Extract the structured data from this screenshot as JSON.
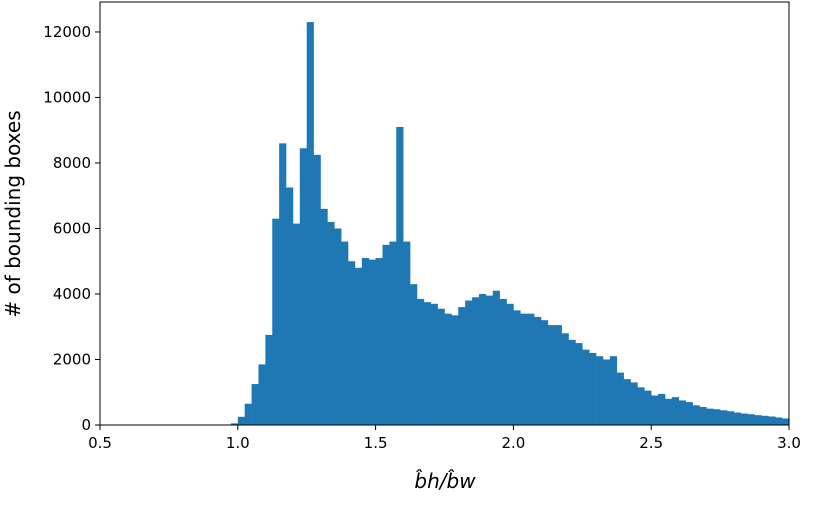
{
  "chart_data": {
    "type": "histogram",
    "xlabel": "b̂h/b̂w",
    "ylabel": "# of bounding boxes",
    "color": "#1f77b4",
    "bins": [
      0.5,
      0.525,
      0.55,
      0.575,
      0.6,
      0.625,
      0.65,
      0.675,
      0.7,
      0.725,
      0.75,
      0.775,
      0.8,
      0.825,
      0.85,
      0.875,
      0.9,
      0.925,
      0.95,
      0.975,
      1.0,
      1.025,
      1.05,
      1.075,
      1.1,
      1.125,
      1.15,
      1.175,
      1.2,
      1.225,
      1.25,
      1.275,
      1.3,
      1.325,
      1.35,
      1.375,
      1.4,
      1.425,
      1.45,
      1.475,
      1.5,
      1.525,
      1.55,
      1.575,
      1.6,
      1.625,
      1.65,
      1.675,
      1.7,
      1.725,
      1.75,
      1.775,
      1.8,
      1.825,
      1.85,
      1.875,
      1.9,
      1.925,
      1.95,
      1.975,
      2.0,
      2.025,
      2.05,
      2.075,
      2.1,
      2.125,
      2.15,
      2.175,
      2.2,
      2.225,
      2.25,
      2.275,
      2.3,
      2.325,
      2.35,
      2.375,
      2.4,
      2.425,
      2.45,
      2.475,
      2.5,
      2.525,
      2.55,
      2.575,
      2.6,
      2.625,
      2.65,
      2.675,
      2.7,
      2.725,
      2.75,
      2.775,
      2.8,
      2.825,
      2.85,
      2.875,
      2.9,
      2.925,
      2.95,
      2.975,
      3.0
    ],
    "values": [
      0,
      0,
      0,
      0,
      0,
      0,
      0,
      0,
      0,
      0,
      0,
      0,
      0,
      0,
      0,
      0,
      0,
      0,
      0,
      50,
      250,
      650,
      1250,
      1850,
      2750,
      6300,
      8600,
      7250,
      6150,
      8450,
      12300,
      8250,
      6600,
      6200,
      6000,
      5600,
      5000,
      4800,
      5100,
      5050,
      5100,
      5500,
      5600,
      9100,
      5600,
      4300,
      3850,
      3750,
      3700,
      3550,
      3400,
      3350,
      3600,
      3800,
      3900,
      4000,
      3950,
      4100,
      3850,
      3700,
      3500,
      3400,
      3400,
      3300,
      3200,
      3050,
      3050,
      2800,
      2600,
      2500,
      2300,
      2200,
      2100,
      2000,
      2100,
      1600,
      1400,
      1300,
      1150,
      1050,
      900,
      950,
      800,
      850,
      750,
      700,
      600,
      550,
      500,
      480,
      450,
      420,
      380,
      350,
      330,
      300,
      280,
      260,
      230,
      200
    ],
    "xlim": [
      0.5,
      3.0
    ],
    "ylim": [
      0,
      12915
    ],
    "xticks": [
      0.5,
      {
        "value": 1.0,
        "label": "1.0"
      },
      1.5,
      {
        "value": 2.0,
        "label": "2.0"
      },
      2.5,
      {
        "value": 3.0,
        "label": "3.0"
      }
    ],
    "yticks": [
      0,
      2000,
      4000,
      6000,
      8000,
      10000,
      12000
    ]
  }
}
